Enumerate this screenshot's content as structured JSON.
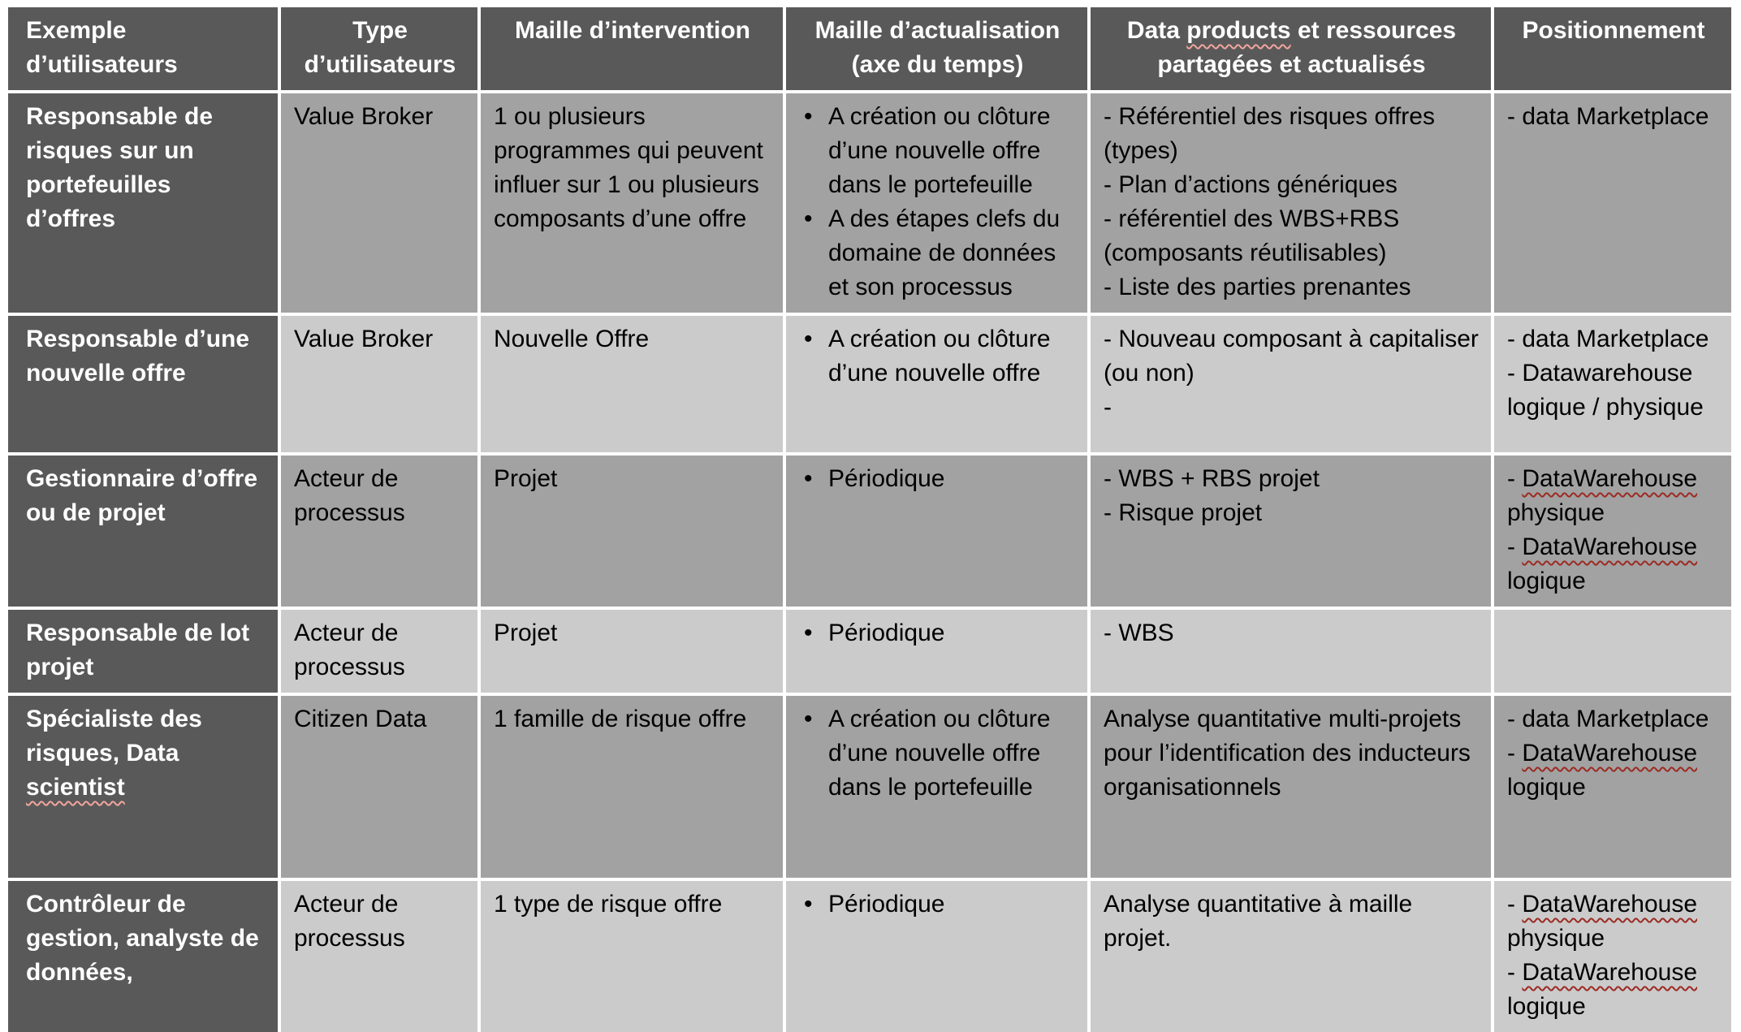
{
  "colors": {
    "header_bg": "#595959",
    "first_column_bg": "#595959",
    "row_mid_bg": "#a2a2a2",
    "row_light_bg": "#cbcbcb",
    "header_text": "#ffffff",
    "body_text": "#000000",
    "spellcheck_on_dark": "#f2a59e",
    "spellcheck_on_light": "#9c2b23"
  },
  "spellcheck": {
    "words": [
      "products",
      "scientist",
      "DataWarehouse"
    ]
  },
  "table": {
    "headers": [
      "Exemple d’utilisateurs",
      "Type d’utilisateurs",
      "Maille d’intervention",
      "Maille d’actualisation (axe du temps)",
      "Data products et ressources partagées et actualisés",
      "Positionnement"
    ],
    "rows": [
      {
        "exemple": "Responsable de risques sur un portefeuilles d’offres",
        "type": "Value Broker",
        "intervention": "1 ou plusieurs programmes qui peuvent influer sur 1 ou plusieurs composants d’une offre",
        "actualisation": [
          "A création ou clôture d’une nouvelle offre dans le portefeuille",
          "A des étapes clefs du domaine de données et son processus"
        ],
        "data_products": [
          "- Référentiel des risques offres (types)",
          "- Plan d’actions génériques",
          "- référentiel des WBS+RBS (composants réutilisables)",
          "- Liste des parties prenantes"
        ],
        "positionnement": [
          "- data Marketplace"
        ]
      },
      {
        "exemple": "Responsable d’une nouvelle offre",
        "type": "Value Broker",
        "intervention": "Nouvelle Offre",
        "actualisation": [
          "A création ou clôture d’une nouvelle offre"
        ],
        "data_products": [
          "- Nouveau composant à capitaliser (ou non)",
          "-"
        ],
        "positionnement": [
          "- data Marketplace",
          "- Datawarehouse logique / physique"
        ]
      },
      {
        "exemple": "Gestionnaire d’offre ou de projet",
        "type": "Acteur de processus",
        "intervention": "Projet",
        "actualisation": [
          "Périodique"
        ],
        "data_products": [
          "- WBS + RBS projet",
          "- Risque projet"
        ],
        "positionnement": [
          "- DataWarehouse physique",
          "- DataWarehouse logique"
        ]
      },
      {
        "exemple": "Responsable de lot projet",
        "type": "Acteur de processus",
        "intervention": "Projet",
        "actualisation": [
          "Périodique"
        ],
        "data_products": [
          "- WBS"
        ],
        "positionnement": []
      },
      {
        "exemple": "Spécialiste des risques, Data scientist",
        "type": "Citizen Data",
        "intervention": "1 famille de risque offre",
        "actualisation": [
          "A création ou clôture d’une nouvelle offre dans le portefeuille"
        ],
        "data_products": [
          "Analyse quantitative multi-projets pour l’identification des inducteurs organisationnels"
        ],
        "positionnement": [
          "- data Marketplace",
          "- DataWarehouse logique"
        ]
      },
      {
        "exemple": "Contrôleur de gestion, analyste de données,",
        "type": "Acteur de processus",
        "intervention": "1 type de risque offre",
        "actualisation": [
          "Périodique"
        ],
        "data_products": [
          "Analyse quantitative à maille projet."
        ],
        "positionnement": [
          "- DataWarehouse physique",
          "- DataWarehouse logique"
        ]
      }
    ]
  }
}
